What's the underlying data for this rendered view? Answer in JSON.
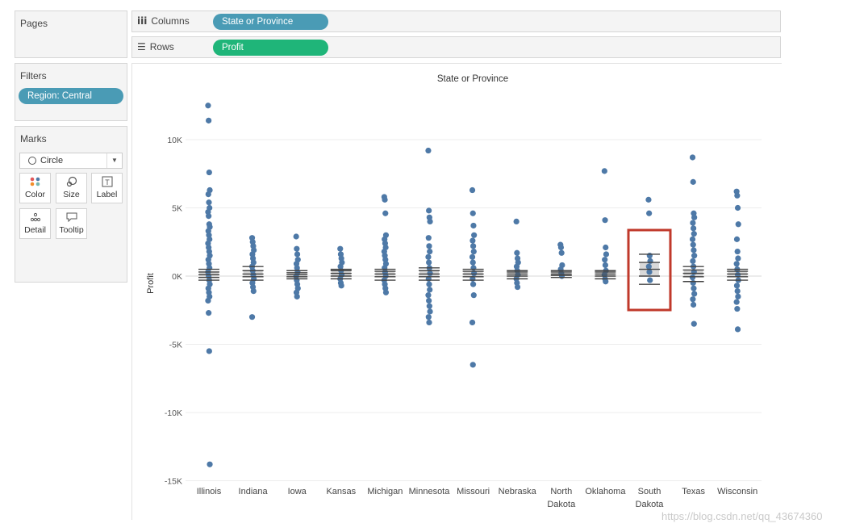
{
  "pages": {
    "title": "Pages"
  },
  "filters": {
    "title": "Filters",
    "pill": "Region: Central"
  },
  "marks": {
    "title": "Marks",
    "mark_type": "Circle",
    "buttons": {
      "color": "Color",
      "size": "Size",
      "label": "Label",
      "detail": "Detail",
      "tooltip": "Tooltip"
    }
  },
  "shelves": {
    "columns": {
      "label": "Columns",
      "icon": "iii",
      "pill": "State or Province"
    },
    "rows": {
      "label": "Rows",
      "icon": "☰",
      "pill": "Profit"
    }
  },
  "colors": {
    "columns_pill": "#4a9bb5",
    "rows_pill": "#1fb579",
    "dots": "#4e79a7",
    "highlight": "#c0392b"
  },
  "watermark": "https://blog.csdn.net/qq_43674360",
  "chart_data": {
    "type": "scatter",
    "subtype": "box-plot with jittered circles",
    "title": "State or Province",
    "ylabel": "Profit",
    "ylim": [
      -15000,
      13000
    ],
    "yticks": [
      10000,
      5000,
      0,
      -5000,
      -10000,
      -15000
    ],
    "ytick_labels": [
      "10K",
      "5K",
      "0K",
      "-5K",
      "-10K",
      "-15K"
    ],
    "gridlines": true,
    "highlighted_category": "South Dakota",
    "categories": [
      {
        "label": [
          "Illinois"
        ],
        "values": [
          12500,
          11400,
          7600,
          6300,
          6000,
          5400,
          5000,
          4700,
          4400,
          3800,
          3600,
          3300,
          3000,
          2700,
          2400,
          2100,
          1800,
          1500,
          1200,
          900,
          600,
          300,
          0,
          -300,
          -600,
          -900,
          -1200,
          -1500,
          -1800,
          -2700,
          -5500,
          -13800
        ],
        "box": {
          "whisker_low": -300,
          "q1": -100,
          "median": 100,
          "q3": 300,
          "whisker_high": 500
        }
      },
      {
        "label": [
          "Indiana"
        ],
        "values": [
          2800,
          2500,
          2200,
          1900,
          1600,
          1300,
          1000,
          700,
          400,
          100,
          -200,
          -500,
          -800,
          -1100,
          -3000
        ],
        "box": {
          "whisker_low": -300,
          "q1": -50,
          "median": 150,
          "q3": 400,
          "whisker_high": 700
        }
      },
      {
        "label": [
          "Iowa"
        ],
        "values": [
          2900,
          2000,
          1600,
          1200,
          900,
          600,
          300,
          0,
          -300,
          -600,
          -900,
          -1200,
          -1500
        ],
        "box": {
          "whisker_low": -200,
          "q1": -50,
          "median": 100,
          "q3": 250,
          "whisker_high": 400
        }
      },
      {
        "label": [
          "Kansas"
        ],
        "values": [
          2000,
          1600,
          1300,
          1000,
          700,
          400,
          100,
          -200,
          -500,
          -700
        ],
        "box": {
          "whisker_low": -200,
          "q1": 0,
          "median": 200,
          "q3": 400,
          "whisker_high": 500
        }
      },
      {
        "label": [
          "Michigan"
        ],
        "values": [
          5800,
          5600,
          4600,
          3000,
          2700,
          2400,
          2100,
          1800,
          1500,
          1200,
          900,
          600,
          300,
          0,
          -300,
          -600,
          -900,
          -1200
        ],
        "box": {
          "whisker_low": -300,
          "q1": -50,
          "median": 150,
          "q3": 350,
          "whisker_high": 500
        }
      },
      {
        "label": [
          "Minnesota"
        ],
        "values": [
          9200,
          4800,
          4300,
          4000,
          2800,
          2200,
          1800,
          1400,
          1000,
          600,
          200,
          -200,
          -600,
          -1000,
          -1400,
          -1800,
          -2200,
          -2600,
          -3000,
          -3400
        ],
        "box": {
          "whisker_low": -300,
          "q1": -50,
          "median": 150,
          "q3": 400,
          "whisker_high": 600
        }
      },
      {
        "label": [
          "Missouri"
        ],
        "values": [
          6300,
          4600,
          3700,
          3000,
          2600,
          2200,
          1800,
          1400,
          1000,
          600,
          200,
          -200,
          -600,
          -1400,
          -3400,
          -6500
        ],
        "box": {
          "whisker_low": -300,
          "q1": -50,
          "median": 150,
          "q3": 350,
          "whisker_high": 500
        }
      },
      {
        "label": [
          "Nebraska"
        ],
        "values": [
          4000,
          1700,
          1300,
          1000,
          700,
          400,
          100,
          -200,
          -500,
          -800
        ],
        "box": {
          "whisker_low": -200,
          "q1": 0,
          "median": 150,
          "q3": 300,
          "whisker_high": 400
        }
      },
      {
        "label": [
          "North",
          "Dakota"
        ],
        "values": [
          2300,
          2100,
          1700,
          800,
          500,
          200,
          0
        ],
        "box": {
          "whisker_low": -100,
          "q1": 50,
          "median": 150,
          "q3": 300,
          "whisker_high": 400
        }
      },
      {
        "label": [
          "Oklahoma"
        ],
        "values": [
          7700,
          4100,
          2100,
          1600,
          1200,
          800,
          400,
          100,
          -200,
          -400
        ],
        "box": {
          "whisker_low": -200,
          "q1": 0,
          "median": 150,
          "q3": 300,
          "whisker_high": 400
        }
      },
      {
        "label": [
          "South",
          "Dakota"
        ],
        "values": [
          5600,
          4600,
          1500,
          1100,
          700,
          300,
          -300
        ],
        "box": {
          "whisker_low": -600,
          "q1": 0,
          "median": 500,
          "q3": 1000,
          "whisker_high": 1600
        }
      },
      {
        "label": [
          "Texas"
        ],
        "values": [
          8700,
          6900,
          4600,
          4300,
          3900,
          3500,
          3100,
          2700,
          2300,
          1900,
          1500,
          1100,
          700,
          300,
          -100,
          -500,
          -900,
          -1300,
          -1700,
          -2100,
          -3500
        ],
        "box": {
          "whisker_low": -400,
          "q1": -50,
          "median": 200,
          "q3": 450,
          "whisker_high": 700
        }
      },
      {
        "label": [
          "Wisconsin"
        ],
        "values": [
          6200,
          5900,
          5000,
          3800,
          2700,
          1800,
          1300,
          900,
          500,
          100,
          -300,
          -700,
          -1100,
          -1500,
          -1900,
          -2400,
          -3900
        ],
        "box": {
          "whisker_low": -300,
          "q1": -50,
          "median": 150,
          "q3": 350,
          "whisker_high": 500
        }
      }
    ]
  }
}
